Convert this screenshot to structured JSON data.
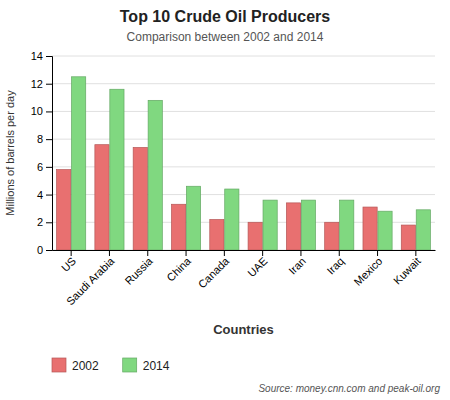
{
  "chart_data": {
    "type": "bar",
    "title": "Top 10 Crude Oil Producers",
    "subtitle": "Comparison between 2002 and 2014",
    "xlabel": "Countries",
    "ylabel": "Millions of barrels per day",
    "source": "Source: money.cnn.com and peak-oil.org",
    "categories": [
      "US",
      "Saudi Arabia",
      "Russia",
      "China",
      "Canada",
      "UAE",
      "Iran",
      "Iraq",
      "Mexico",
      "Kuwait"
    ],
    "series": [
      {
        "name": "2002",
        "color": "#e87070",
        "values": [
          5.8,
          7.6,
          7.4,
          3.3,
          2.2,
          2.0,
          3.4,
          2.0,
          3.1,
          1.8
        ]
      },
      {
        "name": "2014",
        "color": "#80d880",
        "values": [
          12.5,
          11.6,
          10.8,
          4.6,
          4.4,
          3.6,
          3.6,
          3.6,
          2.8,
          2.9
        ]
      }
    ],
    "ylim": [
      0,
      14
    ],
    "yticks": [
      0,
      2,
      4,
      6,
      8,
      10,
      12,
      14
    ],
    "grid": true,
    "legend": "bottom"
  }
}
